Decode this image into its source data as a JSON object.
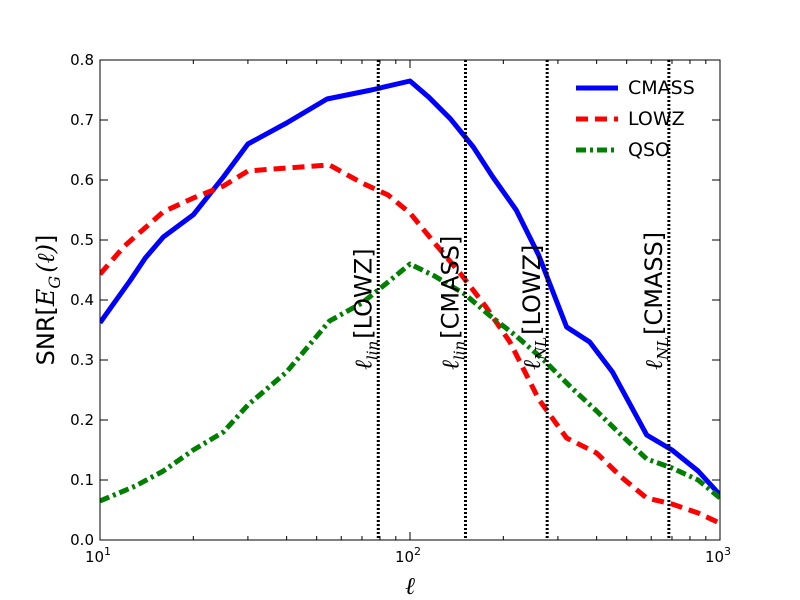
{
  "chart_data": {
    "type": "line",
    "title": "",
    "xlabel": "ℓ",
    "ylabel": {
      "prefix": "SNR[",
      "symbol": "E",
      "subscript": "G",
      "args": "(ℓ)",
      "suffix": "]"
    },
    "xscale": "log",
    "xlim": [
      10,
      1000
    ],
    "ylim": [
      0.0,
      0.8
    ],
    "x_ticks": [
      {
        "value": 10,
        "base": "10",
        "exp": "1"
      },
      {
        "value": 100,
        "base": "10",
        "exp": "2"
      },
      {
        "value": 1000,
        "base": "10",
        "exp": "3"
      }
    ],
    "y_ticks": [
      {
        "value": 0.0,
        "label": "0.0"
      },
      {
        "value": 0.1,
        "label": "0.1"
      },
      {
        "value": 0.2,
        "label": "0.2"
      },
      {
        "value": 0.3,
        "label": "0.3"
      },
      {
        "value": 0.4,
        "label": "0.4"
      },
      {
        "value": 0.5,
        "label": "0.5"
      },
      {
        "value": 0.6,
        "label": "0.6"
      },
      {
        "value": 0.7,
        "label": "0.7"
      },
      {
        "value": 0.8,
        "label": "0.8"
      }
    ],
    "legend_position": "top-right",
    "series": [
      {
        "name": "CMASS",
        "color": "#0000ff",
        "style": "solid",
        "x": [
          10,
          11,
          12.5,
          14,
          16,
          20,
          25,
          30,
          40,
          54,
          75,
          100,
          115,
          135,
          160,
          185,
          220,
          260,
          320,
          380,
          450,
          580,
          700,
          850,
          1000
        ],
        "y": [
          0.362,
          0.392,
          0.432,
          0.47,
          0.505,
          0.542,
          0.605,
          0.66,
          0.695,
          0.735,
          0.75,
          0.765,
          0.738,
          0.702,
          0.655,
          0.605,
          0.55,
          0.475,
          0.355,
          0.33,
          0.28,
          0.175,
          0.15,
          0.115,
          0.075
        ]
      },
      {
        "name": "LOWZ",
        "color": "#ff0000",
        "style": "dashed",
        "x": [
          10,
          12,
          16,
          20,
          25,
          30,
          40,
          55,
          70,
          85,
          100,
          120,
          145,
          175,
          210,
          260,
          320,
          400,
          480,
          580,
          700,
          850,
          1000
        ],
        "y": [
          0.443,
          0.49,
          0.547,
          0.57,
          0.59,
          0.615,
          0.62,
          0.625,
          0.595,
          0.575,
          0.545,
          0.495,
          0.445,
          0.39,
          0.33,
          0.235,
          0.17,
          0.145,
          0.105,
          0.07,
          0.06,
          0.045,
          0.028
        ]
      },
      {
        "name": "QSO",
        "color": "#008000",
        "style": "dashdot",
        "x": [
          10,
          13,
          16,
          20,
          25,
          30,
          40,
          55,
          70,
          85,
          100,
          120,
          150,
          180,
          220,
          270,
          330,
          400,
          480,
          580,
          700,
          850,
          1000
        ],
        "y": [
          0.065,
          0.09,
          0.115,
          0.15,
          0.18,
          0.225,
          0.28,
          0.365,
          0.395,
          0.43,
          0.46,
          0.44,
          0.41,
          0.375,
          0.34,
          0.3,
          0.255,
          0.215,
          0.175,
          0.135,
          0.12,
          0.1,
          0.07
        ]
      }
    ],
    "vlines": [
      {
        "x": 79,
        "label_base": "ℓ",
        "label_sub": "lin",
        "label_tag": "[LOWZ]"
      },
      {
        "x": 151,
        "label_base": "ℓ",
        "label_sub": "lin",
        "label_tag": "[CMASS]"
      },
      {
        "x": 277,
        "label_base": "ℓ",
        "label_sub": "NL",
        "label_tag": "[LOWZ]"
      },
      {
        "x": 684,
        "label_base": "ℓ",
        "label_sub": "NL",
        "label_tag": "[CMASS]"
      }
    ]
  }
}
